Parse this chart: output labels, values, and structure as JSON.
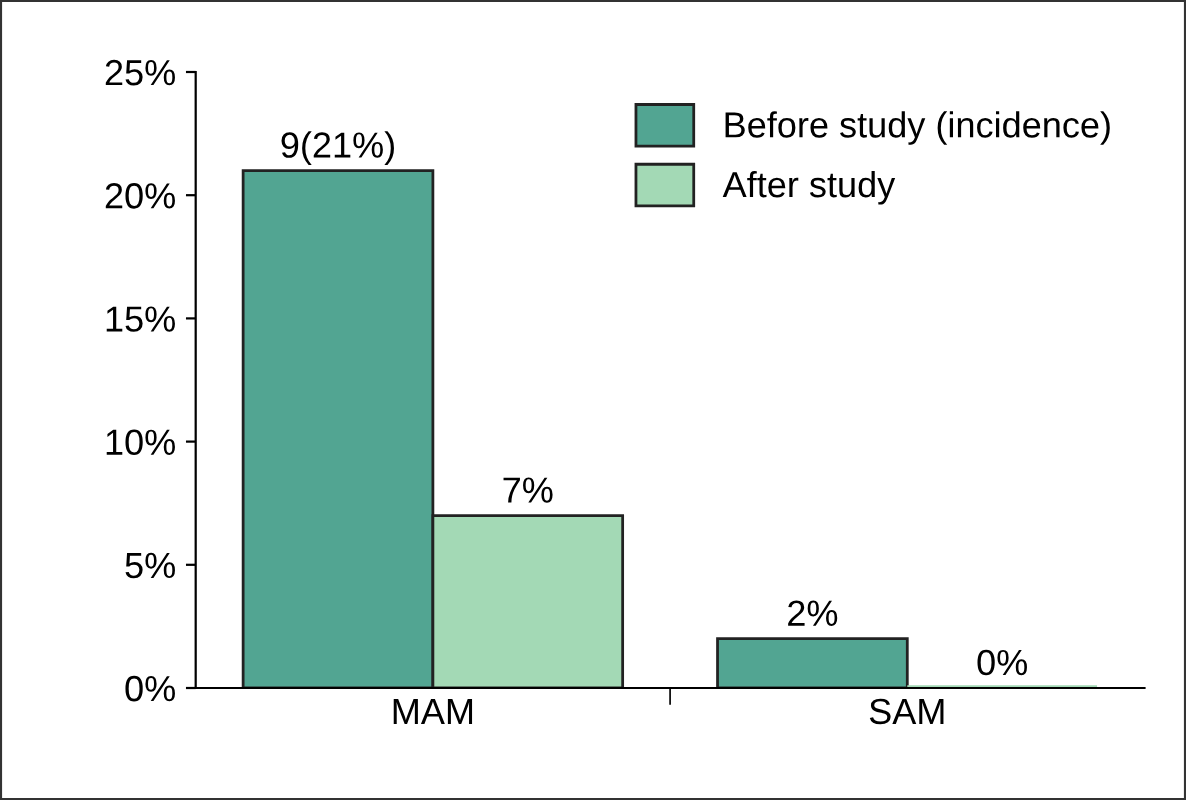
{
  "chart_data": {
    "type": "bar",
    "categories": [
      "MAM",
      "SAM"
    ],
    "series": [
      {
        "name": "Before study (incidence)",
        "color": "#52a592",
        "values": [
          21,
          2
        ],
        "value_labels": [
          "9(21%)",
          "2%"
        ]
      },
      {
        "name": "After study",
        "color": "#a3d9b5",
        "values": [
          7,
          0
        ],
        "value_labels": [
          "7%",
          "0%"
        ]
      }
    ],
    "ylim": [
      0,
      25
    ],
    "yticks": [
      {
        "value": 0,
        "label": "0%"
      },
      {
        "value": 5,
        "label": "5%"
      },
      {
        "value": 10,
        "label": "10%"
      },
      {
        "value": 15,
        "label": "15%"
      },
      {
        "value": 20,
        "label": "20%"
      },
      {
        "value": 25,
        "label": "25%"
      }
    ],
    "legend": "top right",
    "grid": false
  }
}
